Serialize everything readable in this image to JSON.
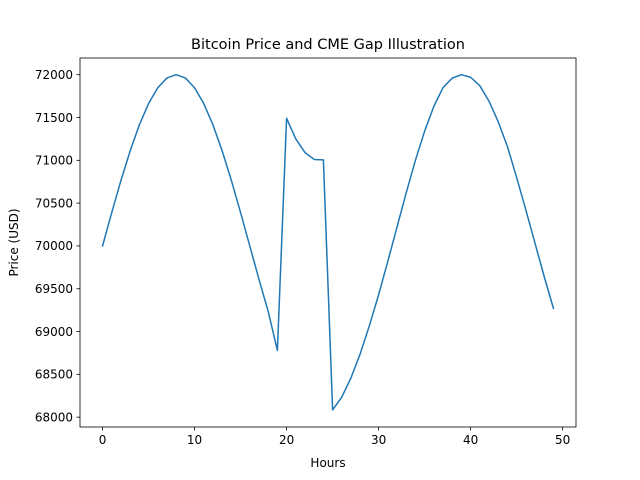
{
  "chart_data": {
    "type": "line",
    "title": "Bitcoin Price and CME Gap Illustration",
    "xlabel": "Hours",
    "ylabel": "Price (USD)",
    "xlim": [
      -2.45,
      51.45
    ],
    "ylim": [
      67885,
      72195
    ],
    "xticks": [
      0,
      10,
      20,
      30,
      40,
      50
    ],
    "yticks": [
      68000,
      68500,
      69000,
      69500,
      70000,
      70500,
      71000,
      71500,
      72000
    ],
    "grid": false,
    "series_color": "#1f77b4",
    "series": [
      {
        "x": [
          0,
          1,
          2,
          3,
          4,
          5,
          6,
          7,
          8,
          9,
          10,
          11,
          12,
          13,
          14,
          15,
          16,
          17,
          18,
          19,
          20,
          21,
          22,
          23,
          24,
          25,
          26,
          27,
          28,
          29,
          30,
          31,
          32,
          33,
          34,
          35,
          36,
          37,
          38,
          39,
          40,
          41,
          42,
          43,
          44,
          45,
          46,
          47,
          48,
          49
        ],
        "values": [
          70000,
          70390,
          70765,
          71110,
          71414,
          71663,
          71848,
          71962,
          72000,
          71962,
          71848,
          71663,
          71414,
          71110,
          70765,
          70390,
          70000,
          69610,
          69235,
          68780,
          71490,
          71250,
          71090,
          71010,
          71005,
          68085,
          68235,
          68460,
          68740,
          69070,
          69430,
          69820,
          70220,
          70620,
          71000,
          71340,
          71630,
          71850,
          71960,
          72000,
          71970,
          71870,
          71690,
          71450,
          71160,
          70800,
          70420,
          70030,
          69640,
          69270
        ]
      }
    ]
  }
}
